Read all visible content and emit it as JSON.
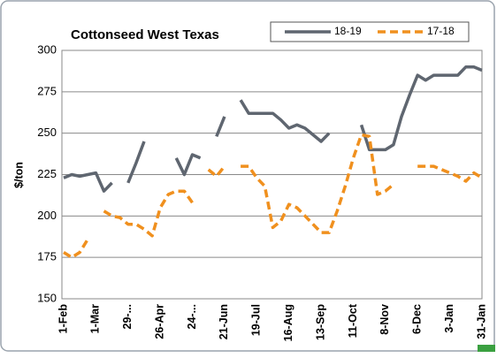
{
  "chart_data": {
    "type": "line",
    "title": "Cottonseed West Texas",
    "y_label": "$/ton",
    "categories": [
      "1-Feb",
      null,
      null,
      null,
      "1-Mar",
      null,
      null,
      null,
      "29-...",
      null,
      null,
      null,
      "26-Apr",
      null,
      null,
      null,
      "24-...",
      null,
      null,
      null,
      "21-Jun",
      null,
      null,
      null,
      "19-Jul",
      null,
      null,
      null,
      "16-Aug",
      null,
      null,
      null,
      "13-Sep",
      null,
      null,
      null,
      "11-Oct",
      null,
      null,
      null,
      "8-Nov",
      null,
      null,
      null,
      "6-Dec",
      null,
      null,
      null,
      "3-Jan",
      null,
      null,
      null,
      "31-Jan"
    ],
    "series": [
      {
        "name": "18-19",
        "color": "#5f6670",
        "dash": false,
        "values": [
          223,
          225,
          224,
          225,
          226,
          215,
          220,
          null,
          220,
          232,
          245,
          null,
          null,
          null,
          235,
          225,
          237,
          235,
          null,
          248,
          260,
          null,
          270,
          262,
          262,
          262,
          262,
          258,
          253,
          255,
          253,
          249,
          245,
          250,
          null,
          null,
          null,
          255,
          240,
          240,
          240,
          243,
          260,
          273,
          285,
          282,
          285,
          285,
          285,
          285,
          290,
          290,
          288
        ]
      },
      {
        "name": "17-18",
        "color": "#f0901e",
        "dash": true,
        "values": [
          178,
          175,
          178,
          186,
          null,
          203,
          200,
          199,
          195,
          195,
          192,
          188,
          205,
          213,
          215,
          215,
          208,
          null,
          228,
          224,
          230,
          null,
          230,
          230,
          223,
          218,
          193,
          197,
          207,
          205,
          200,
          195,
          190,
          190,
          203,
          218,
          235,
          249,
          248,
          213,
          215,
          219,
          null,
          null,
          230,
          230,
          230,
          228,
          226,
          224,
          221,
          226,
          223
        ]
      }
    ],
    "ylim": [
      150,
      300
    ],
    "yticks": [
      150,
      175,
      200,
      225,
      250,
      275,
      300
    ],
    "grid": true,
    "legend": "top-right"
  }
}
